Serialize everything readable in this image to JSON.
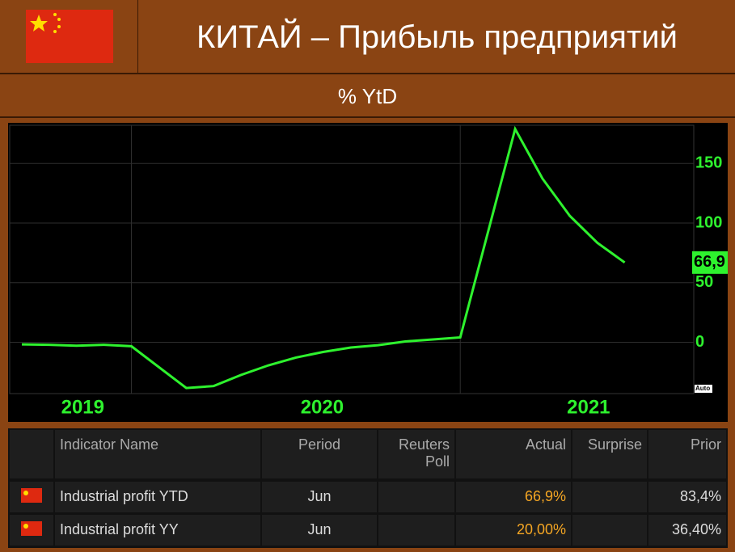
{
  "header": {
    "title": "КИТАЙ – Прибыль предприятий",
    "subtitle": "% YtD"
  },
  "chart_data": {
    "type": "line",
    "x": [
      2019.667,
      2019.75,
      2019.833,
      2019.917,
      2020.0,
      2020.167,
      2020.25,
      2020.333,
      2020.417,
      2020.5,
      2020.583,
      2020.667,
      2020.75,
      2020.833,
      2020.917,
      2021.0,
      2021.167,
      2021.25,
      2021.333,
      2021.417,
      2021.5
    ],
    "series": [
      {
        "color": "#2ef22e",
        "values": [
          -1.7,
          -2.1,
          -2.9,
          -2.1,
          -3.3,
          -38.3,
          -36.7,
          -27.4,
          -19.3,
          -12.8,
          -8.1,
          -4.4,
          -2.4,
          0.7,
          2.4,
          4.1,
          178.9,
          137.3,
          106.0,
          83.4,
          66.9
        ]
      }
    ],
    "xlim": [
      2019.63,
      2021.71
    ],
    "xticks": [
      {
        "value": 2019.852,
        "label": "2019"
      },
      {
        "value": 2020.58,
        "label": "2020"
      },
      {
        "value": 2021.39,
        "label": "2021"
      }
    ],
    "xgrid": [
      2020.0,
      2021.0
    ],
    "ylim": [
      -43,
      182
    ],
    "yticks": [
      0,
      50,
      100,
      150
    ],
    "grid": true,
    "current_value": {
      "value": 66.9,
      "label": "66,9"
    },
    "auto_label": "Auto"
  },
  "table": {
    "columns": [
      "Indicator Name",
      "Period",
      "Reuters Poll",
      "Actual",
      "Surprise",
      "Prior"
    ],
    "rows": [
      [
        "Industrial profit YTD",
        "Jun",
        null,
        "66,9%",
        null,
        "83,4%"
      ],
      [
        "Industrial profit YY",
        "Jun",
        null,
        "20,00%",
        null,
        "36,40%"
      ]
    ]
  }
}
